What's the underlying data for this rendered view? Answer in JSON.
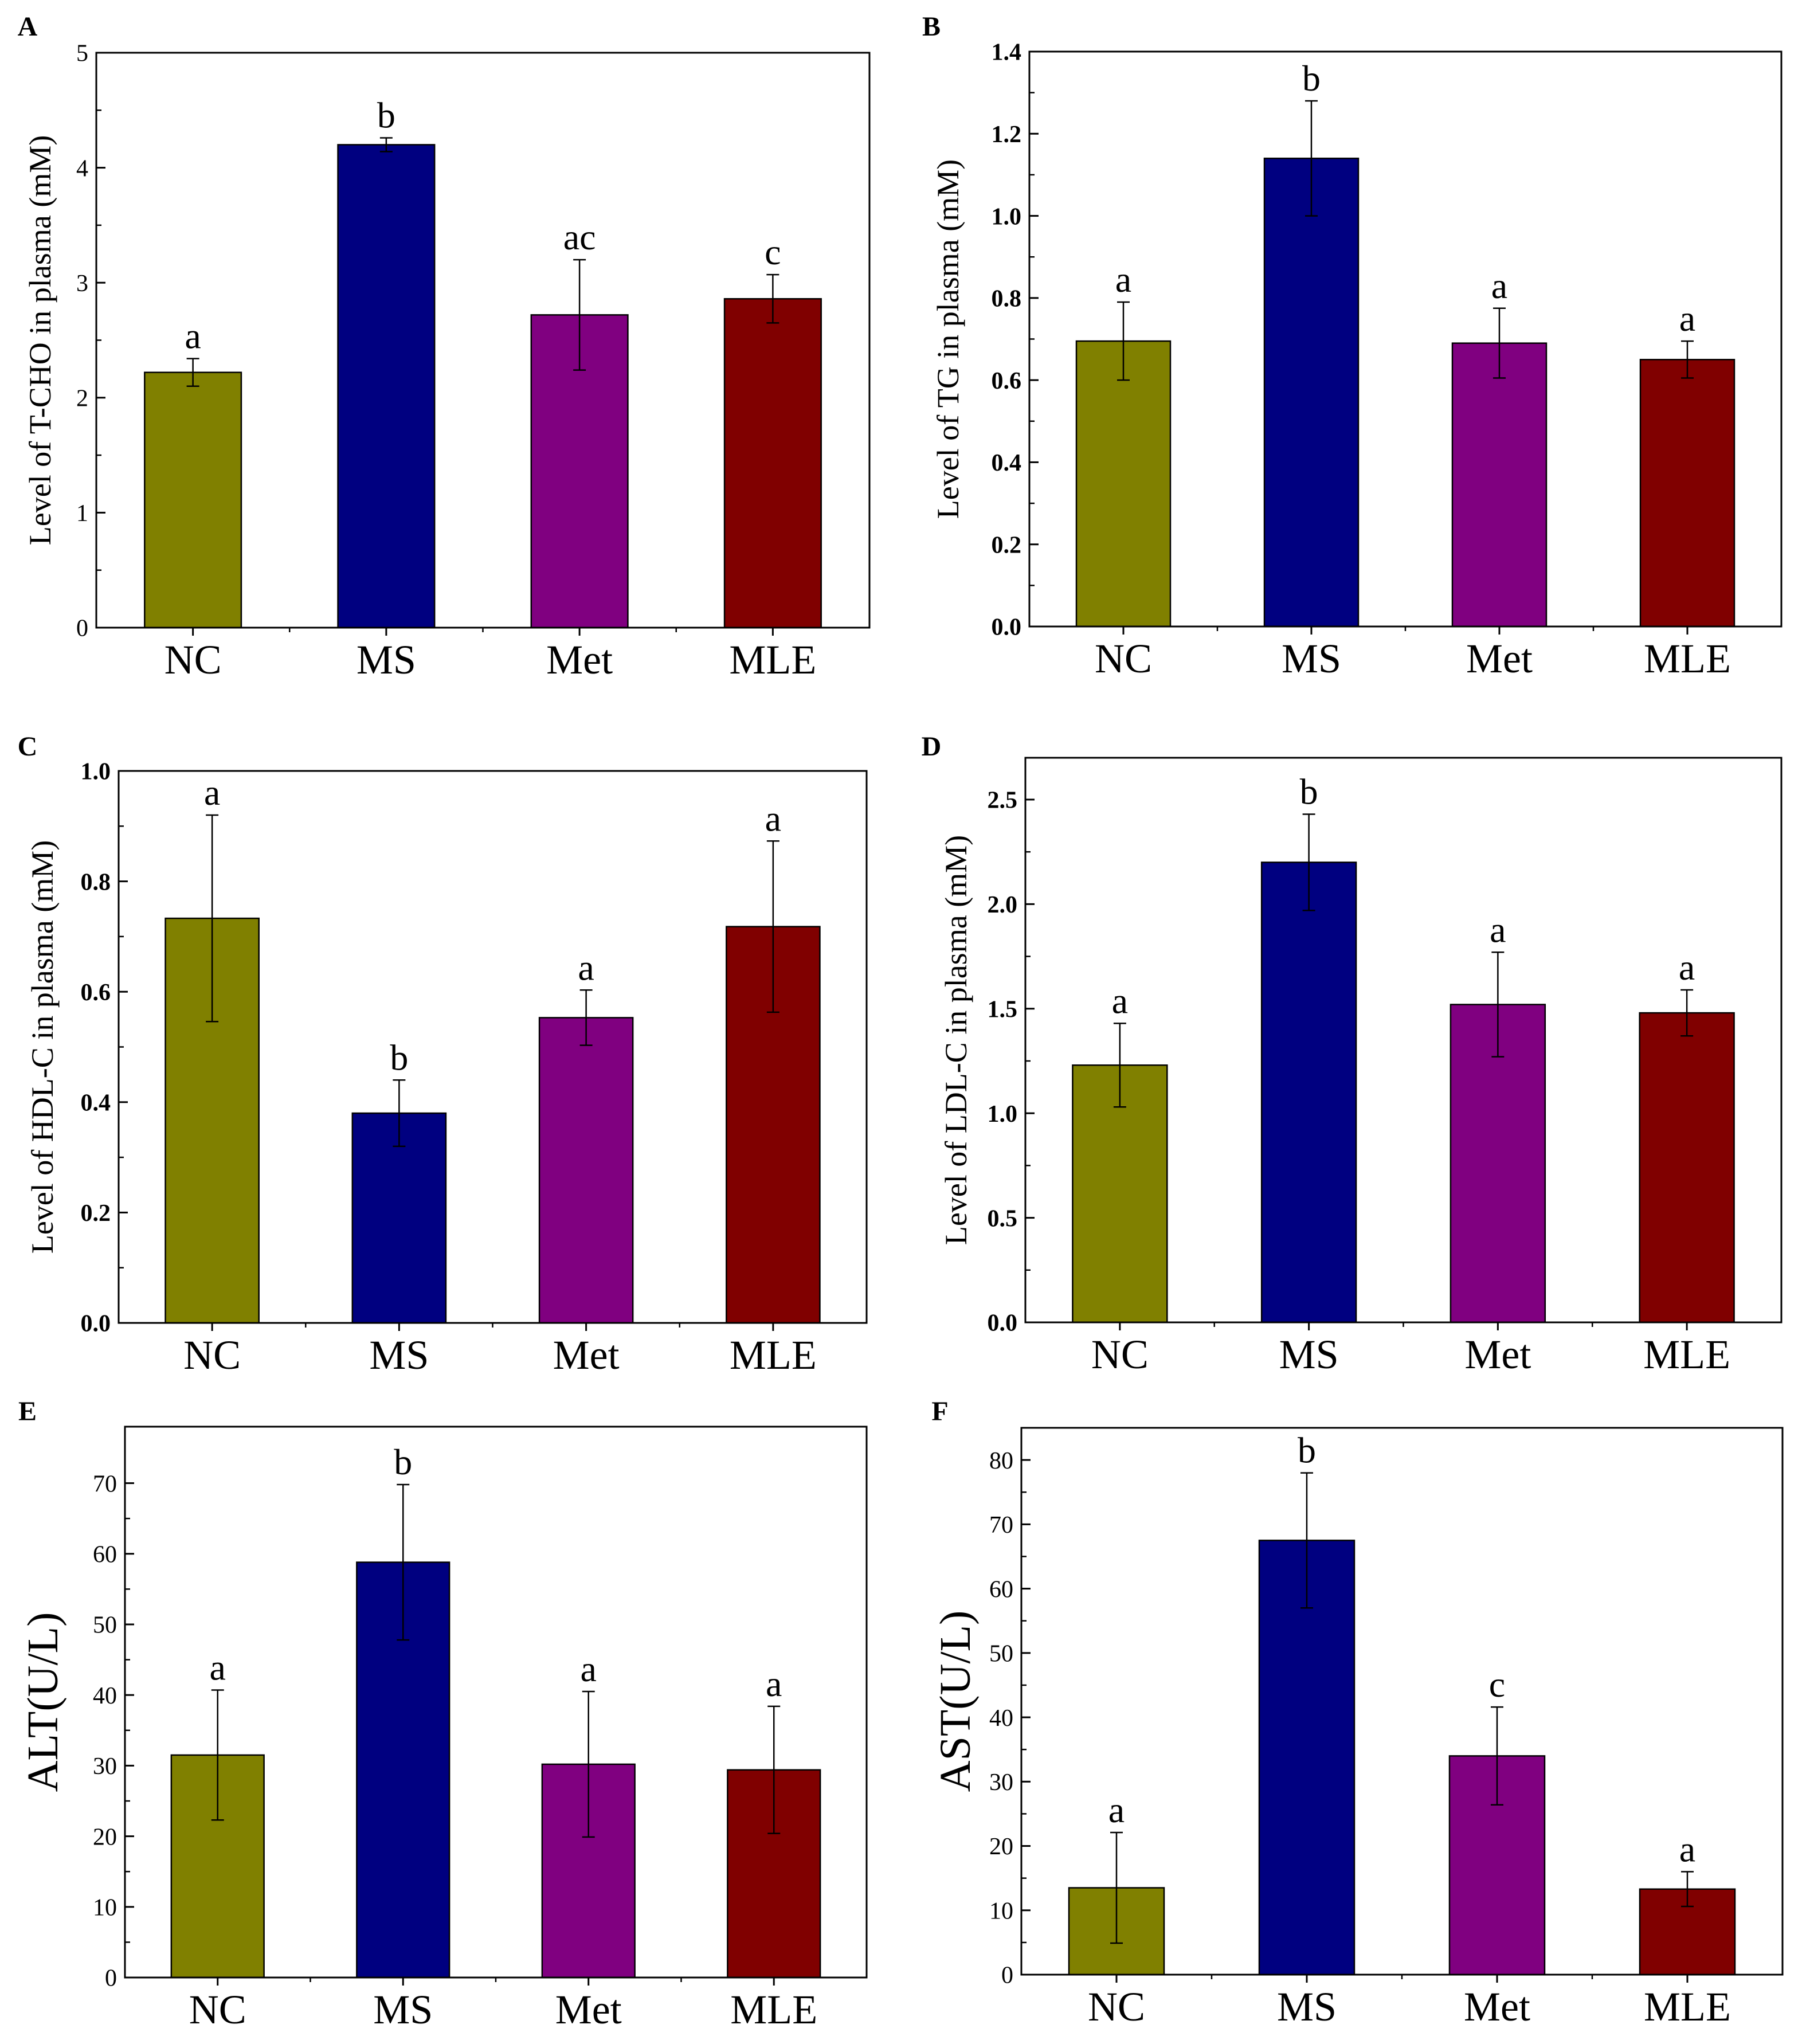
{
  "chart_data": [
    {
      "panel": "A",
      "type": "bar",
      "categories": [
        "NC",
        "MS",
        "Met",
        "MLE"
      ],
      "values": [
        2.22,
        4.2,
        2.72,
        2.86
      ],
      "errors": [
        0.12,
        0.06,
        0.48,
        0.21
      ],
      "significance": [
        "a",
        "b",
        "ac",
        "c"
      ],
      "colors": [
        "#808000",
        "#000080",
        "#800080",
        "#800000"
      ],
      "ylabel": "Level of T-CHO in plasma (mM)",
      "ylim": [
        0,
        5
      ],
      "yticks": [
        0,
        1,
        2,
        3,
        4,
        5
      ],
      "ytick_labels": [
        "0",
        "1",
        "2",
        "3",
        "4",
        "5"
      ]
    },
    {
      "panel": "B",
      "type": "bar",
      "categories": [
        "NC",
        "MS",
        "Met",
        "MLE"
      ],
      "values": [
        0.695,
        1.14,
        0.69,
        0.65
      ],
      "errors": [
        0.095,
        0.14,
        0.085,
        0.045
      ],
      "significance": [
        "a",
        "b",
        "a",
        "a"
      ],
      "colors": [
        "#808000",
        "#000080",
        "#800080",
        "#800000"
      ],
      "ylabel": "Level of TG in plasma (mM)",
      "ylim": [
        0,
        1.4
      ],
      "yticks": [
        0,
        0.2,
        0.4,
        0.6,
        0.8,
        1.0,
        1.2,
        1.4
      ],
      "ytick_labels": [
        "0.0",
        "0.2",
        "0.4",
        "0.6",
        "0.8",
        "1.0",
        "1.2",
        "1.4"
      ]
    },
    {
      "panel": "C",
      "type": "bar",
      "categories": [
        "NC",
        "MS",
        "Met",
        "MLE"
      ],
      "values": [
        0.733,
        0.38,
        0.553,
        0.718
      ],
      "errors": [
        0.187,
        0.06,
        0.05,
        0.155
      ],
      "significance": [
        "a",
        "b",
        "a",
        "a"
      ],
      "colors": [
        "#808000",
        "#000080",
        "#800080",
        "#800000"
      ],
      "ylabel": "Level of HDL-C in plasma (mM)",
      "ylim": [
        0,
        1.0
      ],
      "yticks": [
        0,
        0.2,
        0.4,
        0.6,
        0.8,
        1.0
      ],
      "ytick_labels": [
        "0.0",
        "0.2",
        "0.4",
        "0.6",
        "0.8",
        "1.0"
      ]
    },
    {
      "panel": "D",
      "type": "bar",
      "categories": [
        "NC",
        "MS",
        "Met",
        "MLE"
      ],
      "values": [
        1.23,
        2.2,
        1.52,
        1.48
      ],
      "errors": [
        0.2,
        0.23,
        0.25,
        0.11
      ],
      "significance": [
        "a",
        "b",
        "a",
        "a"
      ],
      "colors": [
        "#808000",
        "#000080",
        "#800080",
        "#800000"
      ],
      "ylabel": "Level of LDL-C in plasma (mM)",
      "ylim": [
        0,
        2.7
      ],
      "yticks": [
        0,
        0.5,
        1.0,
        1.5,
        2.0,
        2.5
      ],
      "ytick_labels": [
        "0.0",
        "0.5",
        "1.0",
        "1.5",
        "2.0",
        "2.5"
      ]
    },
    {
      "panel": "E",
      "type": "bar",
      "categories": [
        "NC",
        "MS",
        "Met",
        "MLE"
      ],
      "values": [
        31.5,
        58.8,
        30.2,
        29.4
      ],
      "errors": [
        9.2,
        11.0,
        10.3,
        9.0
      ],
      "significance": [
        "a",
        "b",
        "a",
        "a"
      ],
      "colors": [
        "#808000",
        "#000080",
        "#800080",
        "#800000"
      ],
      "ylabel": "ALT(U/L)",
      "ylim": [
        0,
        78
      ],
      "yticks": [
        0,
        10,
        20,
        30,
        40,
        50,
        60,
        70
      ],
      "ytick_labels": [
        "0",
        "10",
        "20",
        "30",
        "40",
        "50",
        "60",
        "70"
      ]
    },
    {
      "panel": "F",
      "type": "bar",
      "categories": [
        "NC",
        "MS",
        "Met",
        "MLE"
      ],
      "values": [
        13.5,
        67.5,
        34.0,
        13.3
      ],
      "errors": [
        8.6,
        10.5,
        7.6,
        2.7
      ],
      "significance": [
        "a",
        "b",
        "c",
        "a"
      ],
      "colors": [
        "#808000",
        "#000080",
        "#800080",
        "#800000"
      ],
      "ylabel": "AST(U/L)",
      "ylim": [
        0,
        85
      ],
      "yticks": [
        0,
        10,
        20,
        30,
        40,
        50,
        60,
        70,
        80
      ],
      "ytick_labels": [
        "0",
        "10",
        "20",
        "30",
        "40",
        "50",
        "60",
        "70",
        "80"
      ]
    }
  ]
}
